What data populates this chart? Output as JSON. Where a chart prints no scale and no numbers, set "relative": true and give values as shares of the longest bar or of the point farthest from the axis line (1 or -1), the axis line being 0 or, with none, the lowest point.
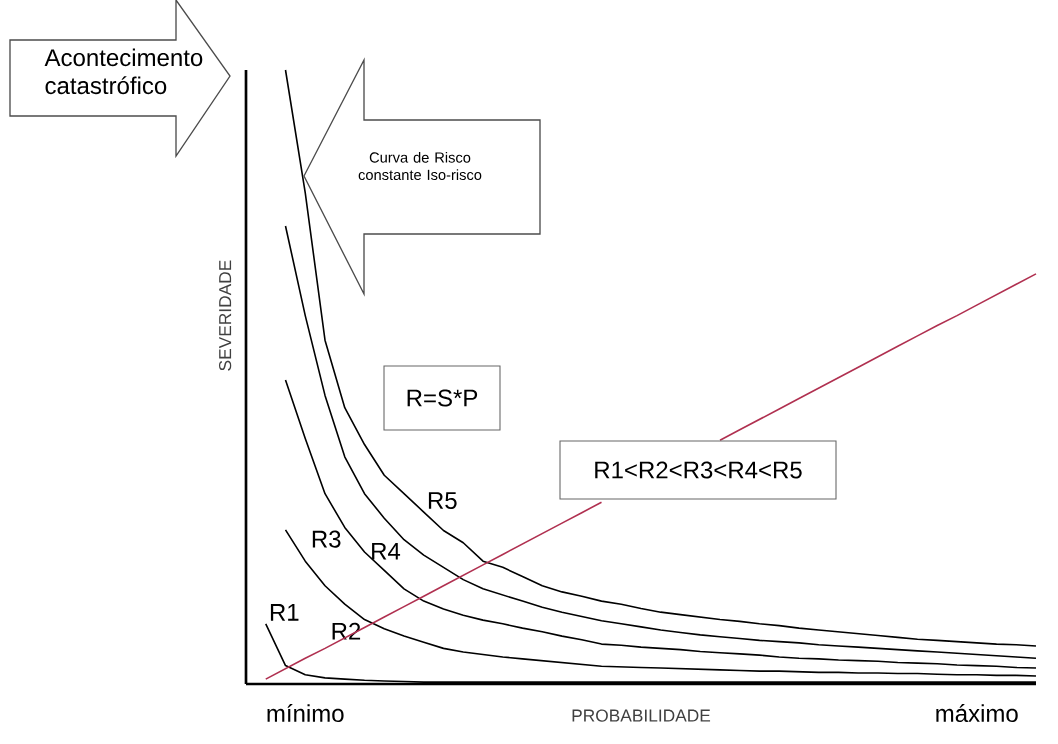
{
  "chart_data": {
    "type": "line",
    "relative": true,
    "xlabel": "PROBABILIDADE",
    "ylabel": "SEVERIDADE",
    "categories": [
      null,
      null,
      null,
      "mínimo",
      null,
      null,
      null,
      null,
      null,
      null,
      null,
      null,
      null,
      null,
      null,
      null,
      null,
      null,
      null,
      null,
      null,
      null,
      null,
      null,
      null,
      null,
      null,
      null,
      null,
      null,
      null,
      null,
      null,
      null,
      null,
      null,
      null,
      "máximo",
      null,
      null,
      null
    ],
    "series": [
      {
        "name": "R1",
        "color": "#000000",
        "values": [
          null,
          0.098,
          0.03,
          0.015,
          0.01,
          0.008,
          0.006,
          0.005,
          0.004,
          0.003,
          0.003,
          0.003,
          0.003,
          0.003,
          0.003,
          0.003,
          0.003,
          0.003,
          0.003,
          0.003,
          0.003,
          0.003,
          0.003,
          0.003,
          0.003,
          0.003,
          0.003,
          0.003,
          0.003,
          0.003,
          0.003,
          0.003,
          0.003,
          0.003,
          0.003,
          0.003,
          0.003,
          0.003,
          0.003,
          0.003,
          0.003
        ]
      },
      {
        "name": "R2",
        "color": "#000000",
        "values": [
          null,
          null,
          0.251,
          0.2,
          0.16,
          0.13,
          0.105,
          0.09,
          0.078,
          0.068,
          0.058,
          0.052,
          0.048,
          0.044,
          0.041,
          0.038,
          0.035,
          0.032,
          0.029,
          0.028,
          0.027,
          0.026,
          0.025,
          0.024,
          0.023,
          0.022,
          0.021,
          0.021,
          0.02,
          0.019,
          0.019,
          0.018,
          0.018,
          0.017,
          0.017,
          0.016,
          0.015,
          0.015,
          0.014,
          0.014,
          0.013
        ]
      },
      {
        "name": "R3",
        "color": "#000000",
        "values": [
          null,
          null,
          0.495,
          0.4,
          0.31,
          0.255,
          0.215,
          0.185,
          0.155,
          0.135,
          0.122,
          0.112,
          0.104,
          0.098,
          0.091,
          0.085,
          0.078,
          0.072,
          0.065,
          0.063,
          0.06,
          0.058,
          0.056,
          0.053,
          0.051,
          0.049,
          0.047,
          0.044,
          0.042,
          0.041,
          0.039,
          0.038,
          0.037,
          0.035,
          0.034,
          0.033,
          0.031,
          0.03,
          0.029,
          0.027,
          0.026
        ]
      },
      {
        "name": "R4",
        "color": "#000000",
        "values": [
          null,
          null,
          0.746,
          0.6,
          0.47,
          0.37,
          0.31,
          0.27,
          0.235,
          0.21,
          0.19,
          0.17,
          0.155,
          0.145,
          0.135,
          0.125,
          0.117,
          0.11,
          0.103,
          0.098,
          0.093,
          0.088,
          0.084,
          0.08,
          0.077,
          0.074,
          0.071,
          0.069,
          0.067,
          0.064,
          0.062,
          0.06,
          0.058,
          0.056,
          0.054,
          0.052,
          0.05,
          0.048,
          0.046,
          0.044,
          0.042
        ]
      },
      {
        "name": "R5",
        "color": "#000000",
        "values": [
          null,
          null,
          1.0,
          0.8,
          0.56,
          0.45,
          0.39,
          0.34,
          0.31,
          0.28,
          0.25,
          0.23,
          0.2,
          0.19,
          0.175,
          0.16,
          0.15,
          0.143,
          0.135,
          0.13,
          0.123,
          0.117,
          0.113,
          0.109,
          0.105,
          0.102,
          0.098,
          0.095,
          0.091,
          0.088,
          0.085,
          0.082,
          0.079,
          0.076,
          0.073,
          0.071,
          0.069,
          0.067,
          0.065,
          0.064,
          0.062
        ]
      },
      {
        "color": "#b03050",
        "values": [
          null,
          0.008,
          0.025,
          0.042,
          0.058,
          0.075,
          0.092,
          0.109,
          0.126,
          0.143,
          0.16,
          0.177,
          0.194,
          0.211,
          0.228,
          0.245,
          0.262,
          0.279,
          0.296,
          null,
          null,
          null,
          null,
          null,
          0.397,
          0.414,
          0.431,
          0.448,
          0.465,
          0.482,
          0.499,
          0.516,
          0.533,
          0.55,
          0.567,
          0.584,
          0.6,
          0.617,
          0.634,
          0.651,
          0.668
        ]
      }
    ],
    "annotations": [
      "Acontecimento catastrófico",
      "Curva de Risco constante Iso-risco",
      "R=S*P",
      "R1<R2<R3<R4<R5"
    ]
  }
}
